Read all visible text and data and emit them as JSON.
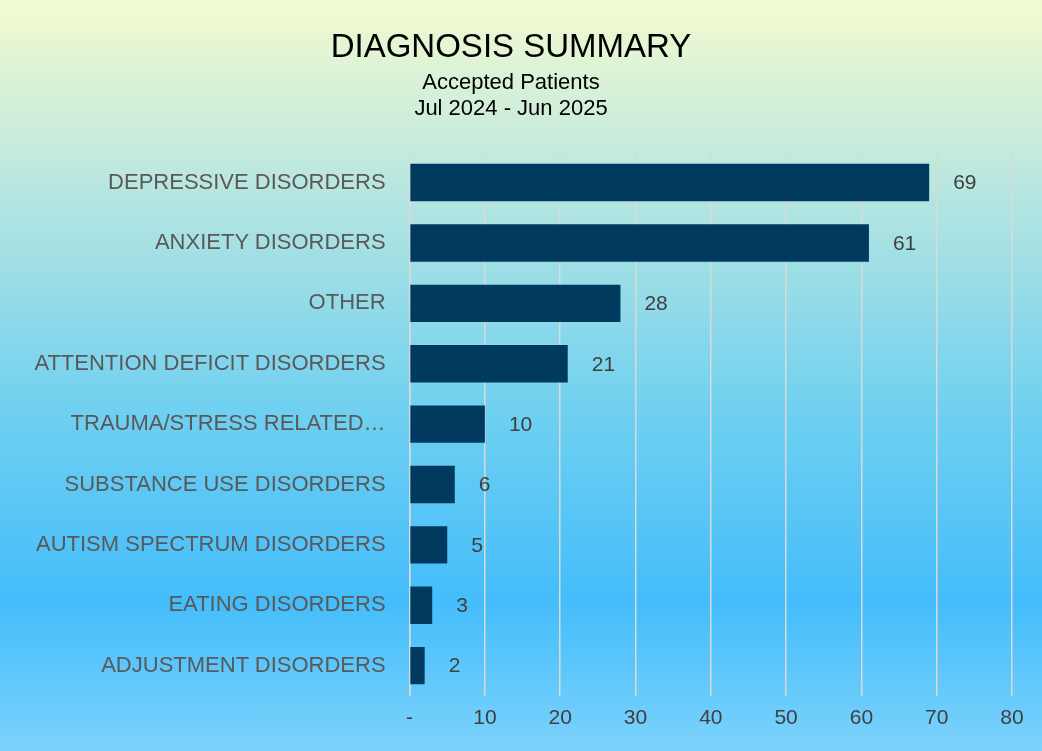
{
  "chart_data": {
    "type": "bar",
    "orientation": "horizontal",
    "title": "DIAGNOSIS SUMMARY",
    "subtitle": "Accepted Patients\nJul 2024 - Jun 2025",
    "categories": [
      "DEPRESSIVE DISORDERS",
      "ANXIETY DISORDERS",
      "OTHER",
      "ATTENTION DEFICIT DISORDERS",
      "TRAUMA/STRESS RELATED…",
      "SUBSTANCE USE DISORDERS",
      "AUTISM SPECTRUM DISORDERS",
      "EATING DISORDERS",
      "ADJUSTMENT DISORDERS"
    ],
    "values": [
      69,
      61,
      28,
      21,
      10,
      6,
      5,
      3,
      2
    ],
    "color": "#003b5f",
    "xlim": [
      0,
      80
    ],
    "xticks": [
      {
        "value": 0,
        "label": "-"
      },
      10,
      20,
      30,
      40,
      50,
      60,
      70,
      80
    ],
    "grid": "x",
    "legend": false,
    "data_labels": true
  }
}
